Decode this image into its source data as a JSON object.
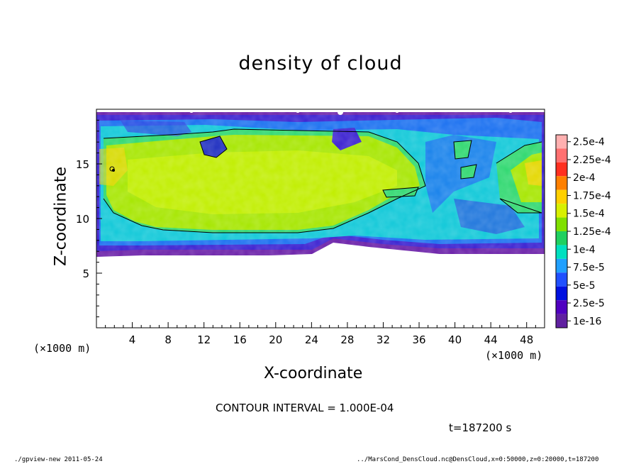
{
  "chart_data": {
    "type": "heatmap",
    "title": "density of cloud",
    "xlabel": "X-coordinate",
    "ylabel": "Z-coordinate",
    "x_unit": "(×1000 m)",
    "y_unit": "(×1000 m)",
    "xlim": [
      0,
      50
    ],
    "ylim": [
      0,
      20
    ],
    "x_ticks": [
      4,
      8,
      12,
      16,
      20,
      24,
      28,
      32,
      36,
      40,
      44,
      48
    ],
    "y_ticks": [
      5,
      10,
      15
    ],
    "grid": false,
    "colorbar": {
      "labels": [
        "2.5e-4",
        "2.25e-4",
        "2e-4",
        "1.75e-4",
        "1.5e-4",
        "1.25e-4",
        "1e-4",
        "7.5e-5",
        "5e-5",
        "2.5e-5",
        "1e-16"
      ],
      "colors": [
        "#ffb0b0",
        "#ff7070",
        "#ff3020",
        "#ff8000",
        "#ffd000",
        "#d8f000",
        "#80e000",
        "#20d060",
        "#00e0c0",
        "#20a0ff",
        "#2050ff",
        "#0010e0",
        "#5000c0",
        "#6020a0"
      ]
    },
    "contour_interval": "CONTOUR INTERVAL = 1.000E-04",
    "time_label": "t=187200 s",
    "footer_left": "./gpview-new  2011-05-24",
    "footer_right": "../MarsCond_DensCloud.nc@DensCloud,x=0:50000,z=0:20000,t=187200"
  }
}
